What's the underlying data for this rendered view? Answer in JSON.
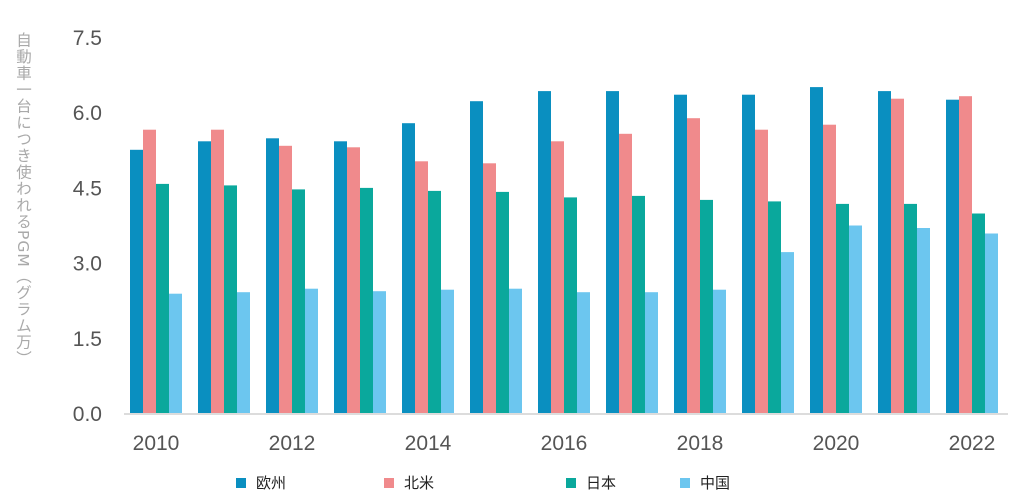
{
  "chart_data": {
    "type": "bar",
    "ylabel": "自動車一台につき使われるPGM（グラム万）",
    "xlabel": "",
    "ylim": [
      0,
      7.5
    ],
    "yticks": [
      "0.0",
      "1.5",
      "3.0",
      "4.5",
      "6.0",
      "7.5"
    ],
    "categories": [
      "2010",
      "2011",
      "2012",
      "2013",
      "2014",
      "2015",
      "2016",
      "2017",
      "2018",
      "2019",
      "2020",
      "2021",
      "2022"
    ],
    "xtick_labels": [
      "2010",
      "",
      "2012",
      "",
      "2014",
      "",
      "2016",
      "",
      "2018",
      "",
      "2020",
      "",
      "2022"
    ],
    "legend_position": "bottom",
    "grid": false,
    "series": [
      {
        "name": "欧州",
        "color": "#0a8fc0",
        "values": [
          5.25,
          5.42,
          5.48,
          5.42,
          5.78,
          6.22,
          6.42,
          6.42,
          6.35,
          6.35,
          6.5,
          6.42,
          6.25
        ]
      },
      {
        "name": "北米",
        "color": "#f08a8c",
        "values": [
          5.65,
          5.65,
          5.33,
          5.3,
          5.02,
          4.98,
          5.42,
          5.57,
          5.88,
          5.65,
          5.75,
          6.27,
          6.32
        ]
      },
      {
        "name": "日本",
        "color": "#0aa89c",
        "values": [
          4.57,
          4.54,
          4.46,
          4.49,
          4.43,
          4.41,
          4.3,
          4.33,
          4.25,
          4.22,
          4.17,
          4.17,
          3.98
        ]
      },
      {
        "name": "中国",
        "color": "#6cc6ef",
        "values": [
          2.38,
          2.41,
          2.48,
          2.43,
          2.46,
          2.48,
          2.41,
          2.41,
          2.46,
          3.21,
          3.74,
          3.69,
          3.58
        ]
      }
    ]
  }
}
